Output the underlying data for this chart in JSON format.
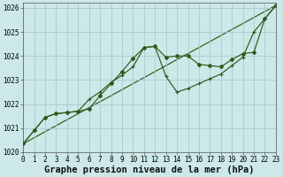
{
  "title": "Graphe pression niveau de la mer (hPa)",
  "background_color": "#cce8e8",
  "grid_color": "#aacccc",
  "line_color": "#2d5a1b",
  "xlim": [
    0,
    23
  ],
  "ylim": [
    1020.0,
    1026.2
  ],
  "ytick_values": [
    1020,
    1021,
    1022,
    1023,
    1024,
    1025,
    1026
  ],
  "xtick_values": [
    0,
    1,
    2,
    3,
    4,
    5,
    6,
    7,
    8,
    9,
    10,
    11,
    12,
    13,
    14,
    15,
    16,
    17,
    18,
    19,
    20,
    21,
    22,
    23
  ],
  "series1_x": [
    0,
    1,
    2,
    3,
    4,
    5,
    6,
    7,
    8,
    9,
    10,
    11,
    12,
    13,
    14,
    15,
    16,
    17,
    18,
    19,
    20,
    21,
    22,
    23
  ],
  "series1_y": [
    1020.35,
    1020.9,
    1021.45,
    1021.6,
    1021.65,
    1021.7,
    1021.8,
    1022.35,
    1022.85,
    1023.35,
    1023.9,
    1024.35,
    1024.4,
    1023.95,
    1024.0,
    1024.0,
    1023.65,
    1023.6,
    1023.55,
    1023.85,
    1024.1,
    1024.15,
    1025.55,
    1026.1
  ],
  "series2_x": [
    0,
    1,
    2,
    3,
    4,
    5,
    6,
    7,
    8,
    9,
    10,
    11,
    12,
    13,
    14,
    15,
    16,
    17,
    18,
    19,
    20,
    21,
    22,
    23
  ],
  "series2_y": [
    1020.35,
    1020.9,
    1021.45,
    1021.6,
    1021.65,
    1021.7,
    1022.2,
    1022.5,
    1022.9,
    1023.2,
    1023.55,
    1024.35,
    1024.4,
    1023.15,
    1022.5,
    1022.65,
    1022.85,
    1023.05,
    1023.25,
    1023.6,
    1023.95,
    1025.0,
    1025.55,
    1026.1
  ],
  "trend_x": [
    0,
    23
  ],
  "trend_y": [
    1020.35,
    1026.1
  ],
  "tick_fontsize": 5.5,
  "xlabel_fontsize": 7.5
}
